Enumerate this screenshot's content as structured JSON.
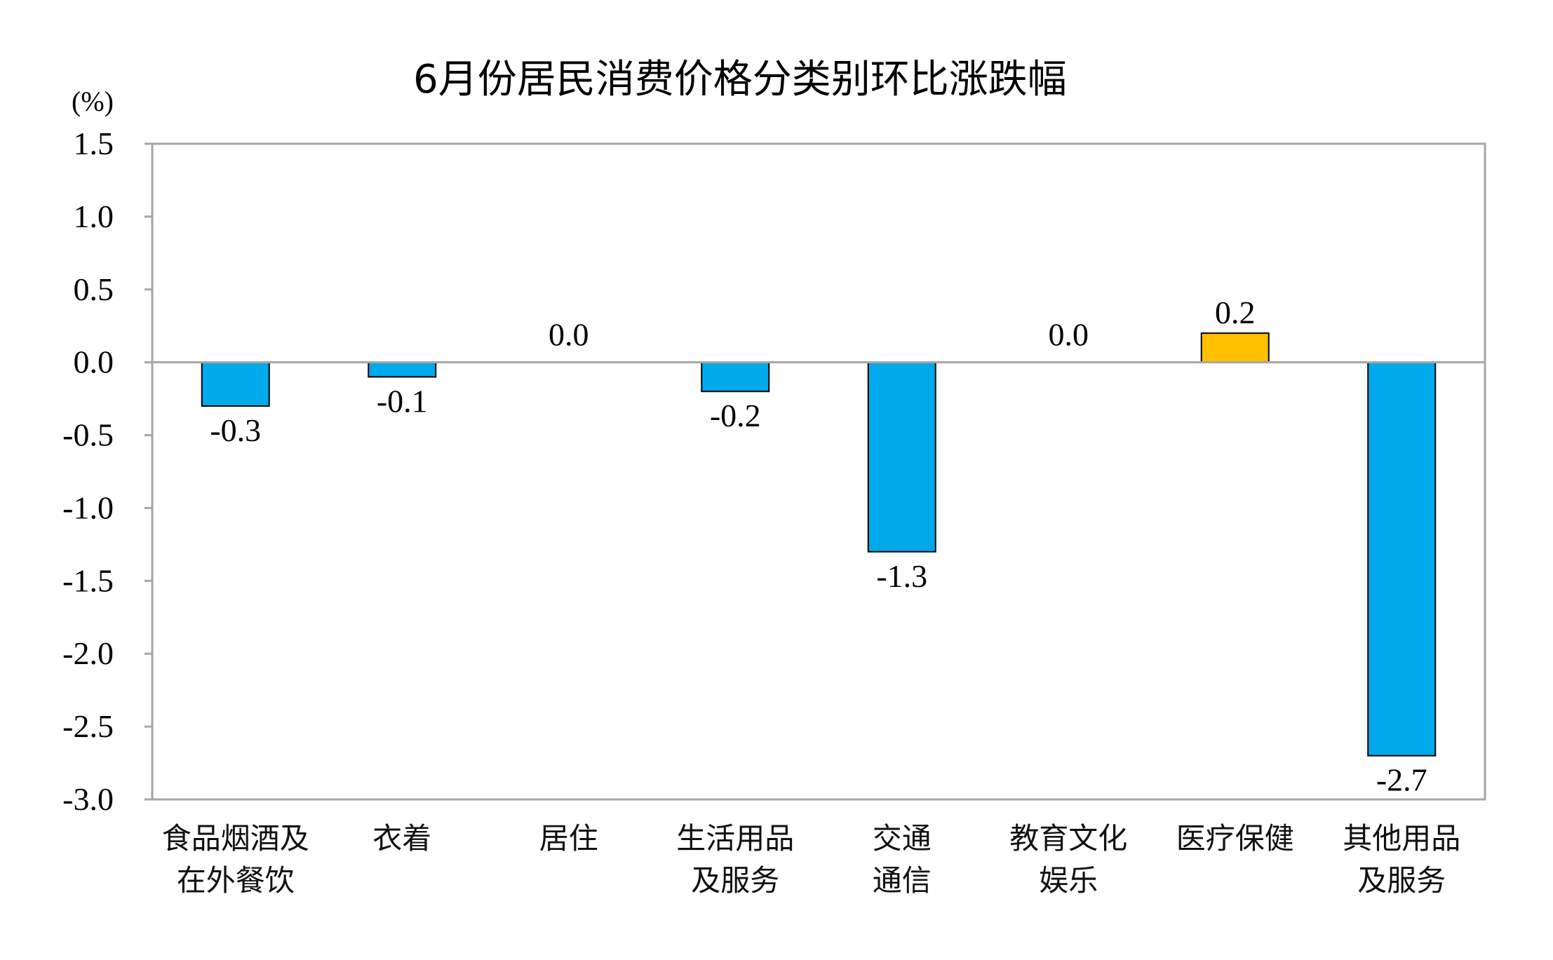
{
  "chart_data": {
    "type": "bar",
    "title": "6月份居民消费价格分类别环比涨跌幅",
    "ylabel": "(%)",
    "ylim": [
      -3.0,
      1.5
    ],
    "yticks": [
      "1.5",
      "1.0",
      "0.5",
      "0.0",
      "-0.5",
      "-1.0",
      "-1.5",
      "-2.0",
      "-2.5",
      "-3.0"
    ],
    "categories": [
      [
        "食品烟酒及",
        "在外餐饮"
      ],
      [
        "衣着"
      ],
      [
        "居住"
      ],
      [
        "生活用品",
        "及服务"
      ],
      [
        "交通",
        "通信"
      ],
      [
        "教育文化",
        "娱乐"
      ],
      [
        "医疗保健"
      ],
      [
        "其他用品",
        "及服务"
      ]
    ],
    "values": [
      -0.3,
      -0.1,
      0.0,
      -0.2,
      -1.3,
      0.0,
      0.2,
      -2.7
    ],
    "value_labels": [
      "-0.3",
      "-0.1",
      "0.0",
      "-0.2",
      "-1.3",
      "0.0",
      "0.2",
      "-2.7"
    ],
    "colors": {
      "negative": "#00A9EA",
      "positive": "#FFC000",
      "frame": "#A6A6A6"
    },
    "grid": false,
    "legend": "none"
  }
}
